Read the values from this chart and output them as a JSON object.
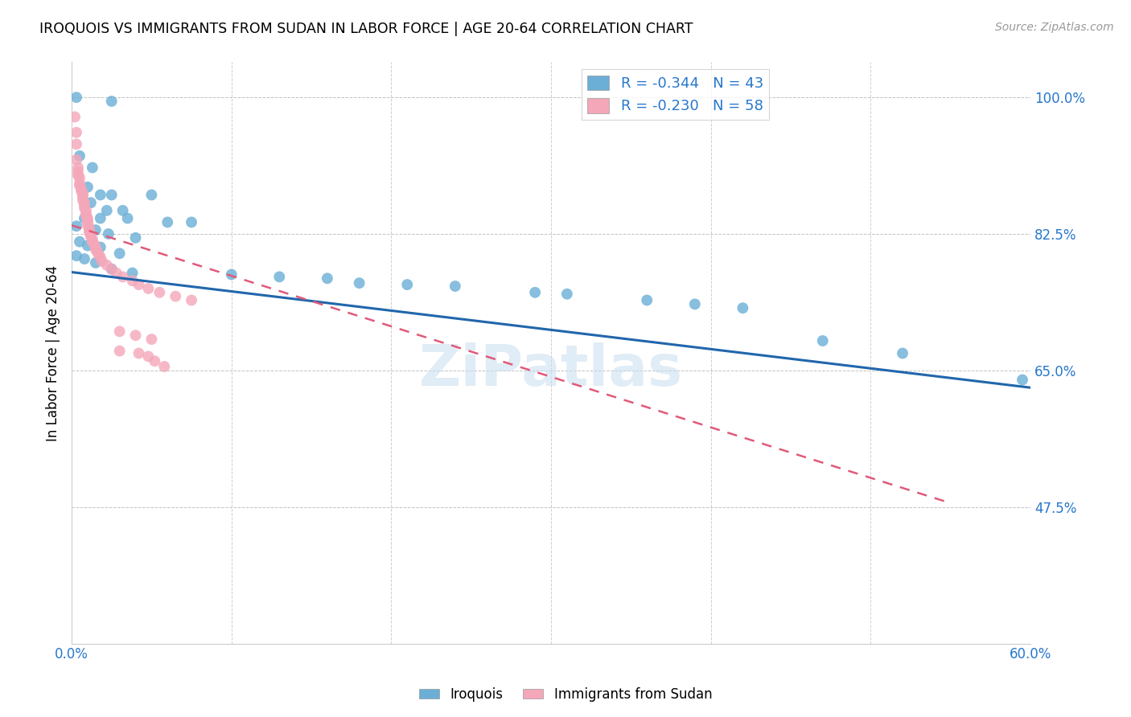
{
  "title": "IROQUOIS VS IMMIGRANTS FROM SUDAN IN LABOR FORCE | AGE 20-64 CORRELATION CHART",
  "source": "Source: ZipAtlas.com",
  "ylabel": "In Labor Force | Age 20-64",
  "x_min": 0.0,
  "x_max": 0.6,
  "y_min": 0.3,
  "y_max": 1.045,
  "x_ticks": [
    0.0,
    0.1,
    0.2,
    0.3,
    0.4,
    0.5,
    0.6
  ],
  "x_tick_labels": [
    "0.0%",
    "",
    "",
    "",
    "",
    "",
    "60.0%"
  ],
  "y_ticks": [
    0.475,
    0.65,
    0.825,
    1.0
  ],
  "y_tick_labels": [
    "47.5%",
    "65.0%",
    "82.5%",
    "100.0%"
  ],
  "watermark": "ZiPatlas",
  "legend_R_blue": "-0.344",
  "legend_N_blue": "43",
  "legend_R_pink": "-0.230",
  "legend_N_pink": "58",
  "legend_label_blue": "Iroquois",
  "legend_label_pink": "Immigrants from Sudan",
  "blue_color": "#6baed6",
  "pink_color": "#f4a7b9",
  "blue_line_color": "#2166ac",
  "pink_line_color": "#e05a7a",
  "blue_line_x": [
    0.0,
    0.6
  ],
  "blue_line_y": [
    0.776,
    0.628
  ],
  "pink_line_x": [
    0.0,
    0.55
  ],
  "pink_line_y": [
    0.836,
    0.48
  ],
  "blue_scatter": [
    [
      0.003,
      1.0
    ],
    [
      0.025,
      0.995
    ],
    [
      0.005,
      0.925
    ],
    [
      0.013,
      0.91
    ],
    [
      0.01,
      0.885
    ],
    [
      0.018,
      0.875
    ],
    [
      0.025,
      0.875
    ],
    [
      0.05,
      0.875
    ],
    [
      0.012,
      0.865
    ],
    [
      0.022,
      0.855
    ],
    [
      0.032,
      0.855
    ],
    [
      0.008,
      0.845
    ],
    [
      0.018,
      0.845
    ],
    [
      0.035,
      0.845
    ],
    [
      0.06,
      0.84
    ],
    [
      0.075,
      0.84
    ],
    [
      0.003,
      0.835
    ],
    [
      0.015,
      0.83
    ],
    [
      0.023,
      0.825
    ],
    [
      0.04,
      0.82
    ],
    [
      0.005,
      0.815
    ],
    [
      0.01,
      0.81
    ],
    [
      0.018,
      0.808
    ],
    [
      0.03,
      0.8
    ],
    [
      0.003,
      0.797
    ],
    [
      0.008,
      0.793
    ],
    [
      0.015,
      0.788
    ],
    [
      0.025,
      0.78
    ],
    [
      0.038,
      0.775
    ],
    [
      0.1,
      0.773
    ],
    [
      0.13,
      0.77
    ],
    [
      0.16,
      0.768
    ],
    [
      0.18,
      0.762
    ],
    [
      0.21,
      0.76
    ],
    [
      0.24,
      0.758
    ],
    [
      0.29,
      0.75
    ],
    [
      0.31,
      0.748
    ],
    [
      0.36,
      0.74
    ],
    [
      0.39,
      0.735
    ],
    [
      0.42,
      0.73
    ],
    [
      0.47,
      0.688
    ],
    [
      0.52,
      0.672
    ],
    [
      0.595,
      0.638
    ]
  ],
  "pink_scatter": [
    [
      0.002,
      0.975
    ],
    [
      0.003,
      0.955
    ],
    [
      0.003,
      0.94
    ],
    [
      0.003,
      0.92
    ],
    [
      0.004,
      0.91
    ],
    [
      0.004,
      0.905
    ],
    [
      0.004,
      0.9
    ],
    [
      0.005,
      0.897
    ],
    [
      0.005,
      0.89
    ],
    [
      0.005,
      0.887
    ],
    [
      0.006,
      0.883
    ],
    [
      0.006,
      0.88
    ],
    [
      0.007,
      0.877
    ],
    [
      0.007,
      0.875
    ],
    [
      0.007,
      0.872
    ],
    [
      0.007,
      0.868
    ],
    [
      0.008,
      0.865
    ],
    [
      0.008,
      0.862
    ],
    [
      0.008,
      0.858
    ],
    [
      0.009,
      0.855
    ],
    [
      0.009,
      0.851
    ],
    [
      0.009,
      0.848
    ],
    [
      0.01,
      0.845
    ],
    [
      0.01,
      0.842
    ],
    [
      0.01,
      0.839
    ],
    [
      0.01,
      0.836
    ],
    [
      0.011,
      0.833
    ],
    [
      0.011,
      0.83
    ],
    [
      0.011,
      0.827
    ],
    [
      0.012,
      0.824
    ],
    [
      0.012,
      0.821
    ],
    [
      0.013,
      0.818
    ],
    [
      0.013,
      0.815
    ],
    [
      0.014,
      0.812
    ],
    [
      0.015,
      0.808
    ],
    [
      0.015,
      0.805
    ],
    [
      0.016,
      0.802
    ],
    [
      0.017,
      0.798
    ],
    [
      0.018,
      0.795
    ],
    [
      0.019,
      0.79
    ],
    [
      0.022,
      0.785
    ],
    [
      0.025,
      0.78
    ],
    [
      0.028,
      0.775
    ],
    [
      0.032,
      0.77
    ],
    [
      0.038,
      0.765
    ],
    [
      0.042,
      0.76
    ],
    [
      0.048,
      0.755
    ],
    [
      0.055,
      0.75
    ],
    [
      0.065,
      0.745
    ],
    [
      0.075,
      0.74
    ],
    [
      0.03,
      0.7
    ],
    [
      0.04,
      0.695
    ],
    [
      0.05,
      0.69
    ],
    [
      0.03,
      0.675
    ],
    [
      0.042,
      0.672
    ],
    [
      0.048,
      0.668
    ],
    [
      0.052,
      0.662
    ],
    [
      0.058,
      0.655
    ]
  ]
}
